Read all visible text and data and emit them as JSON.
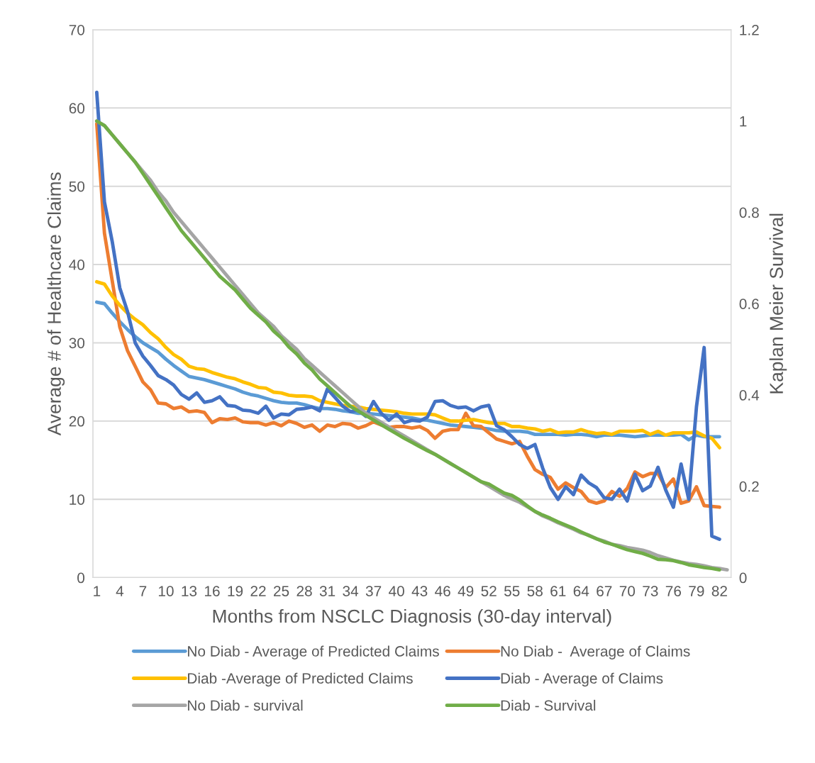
{
  "chart_data": {
    "type": "line",
    "xlabel": "Months from NSCLC Diagnosis (30-day interval)",
    "ylabel": "Average # of Healthcare Claims",
    "y2label": "Kaplan Meier Survival",
    "categories": [
      "1",
      null,
      null,
      "4",
      null,
      null,
      "7",
      null,
      null,
      "10",
      null,
      null,
      "13",
      null,
      null,
      "16",
      null,
      null,
      "19",
      null,
      null,
      "22",
      null,
      null,
      "25",
      null,
      null,
      "28",
      null,
      null,
      "31",
      null,
      null,
      "34",
      null,
      null,
      "37",
      null,
      null,
      "40",
      null,
      null,
      "43",
      null,
      null,
      "46",
      null,
      null,
      "49",
      null,
      null,
      "52",
      null,
      null,
      "55",
      null,
      null,
      "58",
      null,
      null,
      "61",
      null,
      null,
      "64",
      null,
      null,
      "67",
      null,
      null,
      "70",
      null,
      null,
      "73",
      null,
      null,
      "76",
      null,
      null,
      "79",
      null,
      null,
      "82",
      null
    ],
    "ylim": [
      0,
      70
    ],
    "yticks": [
      0,
      10,
      20,
      30,
      40,
      50,
      60,
      70
    ],
    "y2lim": [
      0,
      1.2
    ],
    "y2ticks": [
      0,
      0.2,
      0.4,
      0.6,
      0.8,
      1,
      1.2
    ],
    "grid": "y",
    "legend": "bottom",
    "line_style": "solid",
    "marker": "none",
    "series": [
      {
        "name": "No Diab - Average of Predicted Claims",
        "color": "#5b9bd5",
        "values": [
          35.2,
          35.0,
          33.8,
          32.7,
          31.7,
          30.8,
          30.0,
          29.4,
          28.8,
          27.9,
          27.1,
          26.4,
          25.7,
          25.5,
          25.3,
          25.0,
          24.7,
          24.4,
          24.1,
          23.7,
          23.4,
          23.2,
          22.9,
          22.6,
          22.4,
          22.3,
          22.3,
          22.1,
          21.8,
          21.6,
          21.6,
          21.5,
          21.3,
          21.2,
          21.0,
          21.0,
          20.9,
          20.8,
          20.7,
          20.6,
          20.5,
          20.4,
          20.2,
          20.1,
          19.9,
          19.7,
          19.5,
          19.4,
          19.3,
          19.2,
          19.1,
          19.0,
          18.8,
          18.7,
          18.7,
          18.7,
          18.6,
          18.3,
          18.3,
          18.3,
          18.3,
          18.2,
          18.3,
          18.3,
          18.2,
          18.0,
          18.2,
          18.2,
          18.2,
          18.1,
          18.0,
          18.1,
          18.2,
          18.2,
          18.2,
          18.2,
          18.3,
          17.6,
          18.2,
          18.0,
          18.0,
          18.0,
          null
        ]
      },
      {
        "name": "No Diab -  Average of Claims",
        "color": "#ed7d31",
        "values": [
          58,
          44,
          38,
          32,
          29,
          27,
          25,
          24,
          22.3,
          22.2,
          21.6,
          21.8,
          21.2,
          21.3,
          21.1,
          19.8,
          20.3,
          20.2,
          20.4,
          19.9,
          19.8,
          19.8,
          19.5,
          19.8,
          19.4,
          20.0,
          19.7,
          19.2,
          19.5,
          18.7,
          19.5,
          19.3,
          19.7,
          19.6,
          19.1,
          19.4,
          19.9,
          19.5,
          19.2,
          19.3,
          19.3,
          19.1,
          19.3,
          18.8,
          17.8,
          18.7,
          18.9,
          18.9,
          21.0,
          19.4,
          19.3,
          18.5,
          17.7,
          17.4,
          17.1,
          17.4,
          15.5,
          13.8,
          13.2,
          12.8,
          11.3,
          12.1,
          11.5,
          11.0,
          9.8,
          9.5,
          9.8,
          11.0,
          10.4,
          11.4,
          13.5,
          12.9,
          13.3,
          13.3,
          11.5,
          12.6,
          9.5,
          9.8,
          11.6,
          9.2,
          9.1,
          9.0,
          null
        ]
      },
      {
        "name": "Diab -Average of Predicted Claims",
        "color": "#ffc000",
        "values": [
          37.8,
          37.5,
          36.0,
          34.8,
          33.8,
          33.0,
          32.3,
          31.3,
          30.5,
          29.4,
          28.5,
          27.9,
          27.0,
          26.7,
          26.6,
          26.2,
          25.9,
          25.6,
          25.4,
          25.0,
          24.7,
          24.3,
          24.2,
          23.7,
          23.6,
          23.3,
          23.2,
          23.2,
          23.1,
          22.6,
          22.4,
          22.2,
          22.0,
          21.9,
          21.8,
          21.6,
          21.5,
          21.4,
          21.3,
          21.2,
          21.0,
          20.9,
          20.9,
          20.9,
          20.8,
          20.4,
          20.0,
          20.0,
          20.1,
          20.2,
          20.0,
          19.8,
          19.7,
          19.7,
          19.3,
          19.3,
          19.1,
          19.0,
          18.7,
          18.9,
          18.5,
          18.6,
          18.6,
          18.9,
          18.6,
          18.4,
          18.5,
          18.3,
          18.7,
          18.7,
          18.7,
          18.8,
          18.3,
          18.7,
          18.2,
          18.5,
          18.5,
          18.5,
          18.6,
          18.1,
          17.8,
          16.6,
          null
        ]
      },
      {
        "name": "Diab - Average of Claims",
        "color": "#4472c4",
        "values": [
          62,
          48,
          43,
          37,
          34,
          30,
          28.3,
          27.1,
          25.8,
          25.3,
          24.6,
          23.4,
          22.8,
          23.6,
          22.4,
          22.6,
          23.1,
          22.0,
          21.9,
          21.4,
          21.3,
          21.0,
          21.9,
          20.4,
          20.9,
          20.8,
          21.5,
          21.6,
          21.8,
          21.3,
          24.1,
          23.0,
          21.9,
          21.2,
          21.4,
          20.6,
          22.5,
          21.0,
          20.1,
          20.9,
          19.8,
          20.1,
          20.0,
          20.5,
          22.5,
          22.6,
          22.0,
          21.7,
          21.8,
          21.3,
          21.8,
          22.0,
          19.4,
          18.9,
          18.0,
          17.0,
          16.5,
          17.0,
          14.0,
          11.5,
          10.0,
          11.6,
          10.6,
          13.1,
          12.1,
          11.5,
          10.2,
          10.0,
          11.3,
          9.8,
          13.2,
          11.1,
          11.7,
          14.1,
          11.2,
          9.0,
          14.5,
          10.0,
          21.8,
          29.4,
          5.3,
          4.9,
          null
        ]
      },
      {
        "name": "No Diab - survival",
        "color": "#a5a5a5",
        "axis": "y2",
        "values": [
          1.0,
          0.99,
          0.97,
          0.95,
          0.93,
          0.91,
          0.89,
          0.87,
          0.845,
          0.825,
          0.8,
          0.78,
          0.76,
          0.74,
          0.72,
          0.7,
          0.68,
          0.66,
          0.64,
          0.62,
          0.6,
          0.58,
          0.565,
          0.55,
          0.53,
          0.515,
          0.5,
          0.48,
          0.465,
          0.45,
          0.435,
          0.42,
          0.405,
          0.39,
          0.375,
          0.36,
          0.35,
          0.34,
          0.33,
          0.32,
          0.31,
          0.3,
          0.29,
          0.28,
          0.27,
          0.26,
          0.25,
          0.24,
          0.23,
          0.22,
          0.21,
          0.2,
          0.19,
          0.18,
          0.172,
          0.165,
          0.155,
          0.145,
          0.135,
          0.128,
          0.12,
          0.113,
          0.106,
          0.098,
          0.093,
          0.085,
          0.08,
          0.073,
          0.07,
          0.066,
          0.063,
          0.06,
          0.055,
          0.048,
          0.043,
          0.038,
          0.034,
          0.031,
          0.029,
          0.026,
          0.022,
          0.02,
          0.017
        ]
      },
      {
        "name": "Diab - Survival",
        "color": "#70ad47",
        "axis": "y2",
        "values": [
          1.0,
          0.99,
          0.97,
          0.95,
          0.93,
          0.91,
          0.885,
          0.86,
          0.835,
          0.81,
          0.785,
          0.76,
          0.74,
          0.72,
          0.7,
          0.68,
          0.66,
          0.645,
          0.63,
          0.61,
          0.59,
          0.575,
          0.56,
          0.54,
          0.525,
          0.505,
          0.49,
          0.47,
          0.455,
          0.435,
          0.42,
          0.405,
          0.39,
          0.375,
          0.365,
          0.355,
          0.345,
          0.335,
          0.325,
          0.315,
          0.305,
          0.296,
          0.287,
          0.278,
          0.27,
          0.26,
          0.25,
          0.24,
          0.23,
          0.22,
          0.21,
          0.205,
          0.195,
          0.185,
          0.18,
          0.17,
          0.157,
          0.145,
          0.137,
          0.13,
          0.122,
          0.115,
          0.108,
          0.1,
          0.092,
          0.085,
          0.078,
          0.073,
          0.067,
          0.061,
          0.057,
          0.053,
          0.047,
          0.04,
          0.039,
          0.037,
          0.033,
          0.028,
          0.025,
          0.022,
          0.02,
          0.017,
          null
        ]
      }
    ]
  }
}
